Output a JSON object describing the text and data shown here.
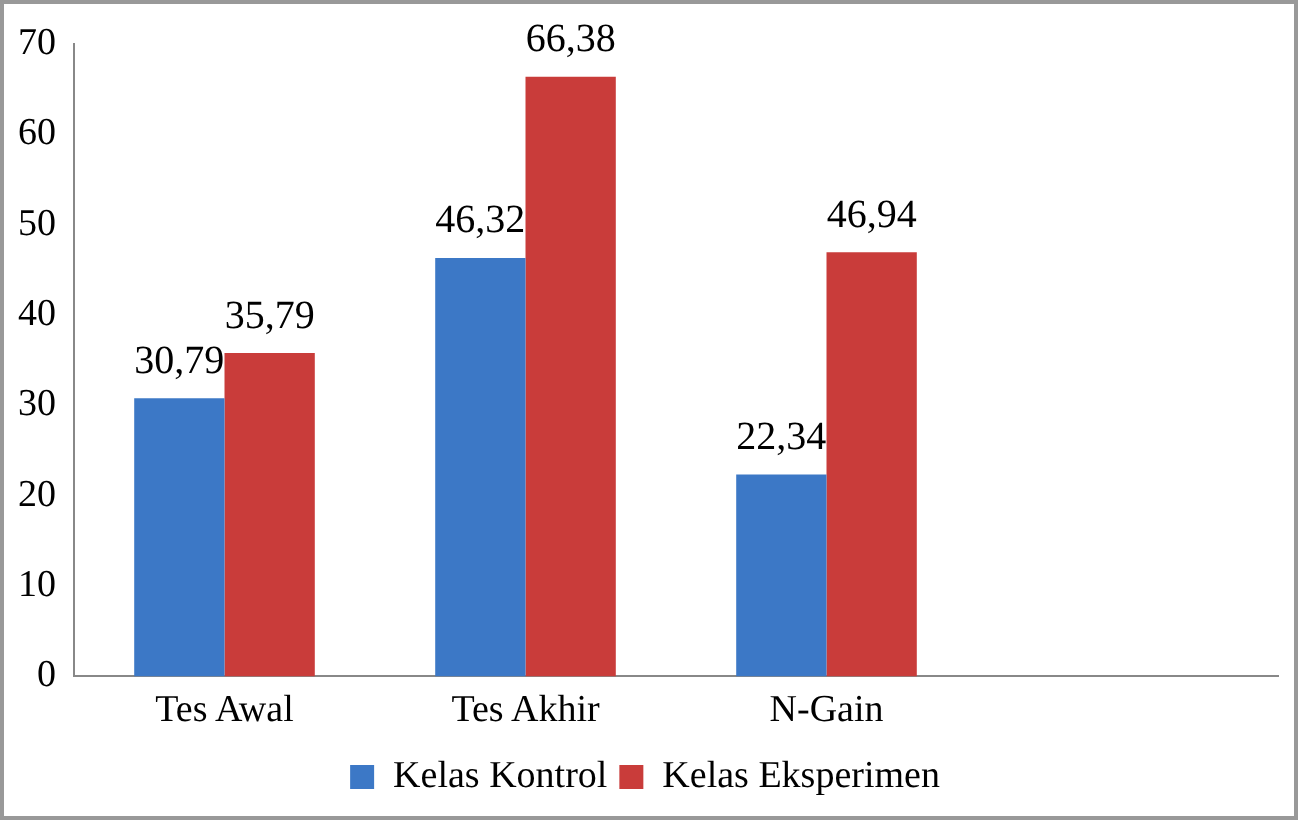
{
  "chart_data": {
    "type": "bar",
    "categories": [
      "Tes Awal",
      "Tes Akhir",
      "N-Gain",
      null
    ],
    "series": [
      {
        "name": "Kelas Kontrol",
        "color": "#3c78c6",
        "values": [
          30.79,
          46.32,
          22.34,
          null
        ],
        "value_labels": [
          "30,79",
          "46,32",
          "22,34",
          null
        ]
      },
      {
        "name": "Kelas Eksperimen",
        "color": "#c93c3a",
        "values": [
          35.79,
          66.38,
          46.94,
          null
        ],
        "value_labels": [
          "35,79",
          "66,38",
          "46,94",
          null
        ]
      }
    ],
    "ylim": [
      0,
      70
    ],
    "yticks": [
      0,
      10,
      20,
      30,
      40,
      50,
      60,
      70
    ],
    "grid": false,
    "legend": "bottom"
  }
}
